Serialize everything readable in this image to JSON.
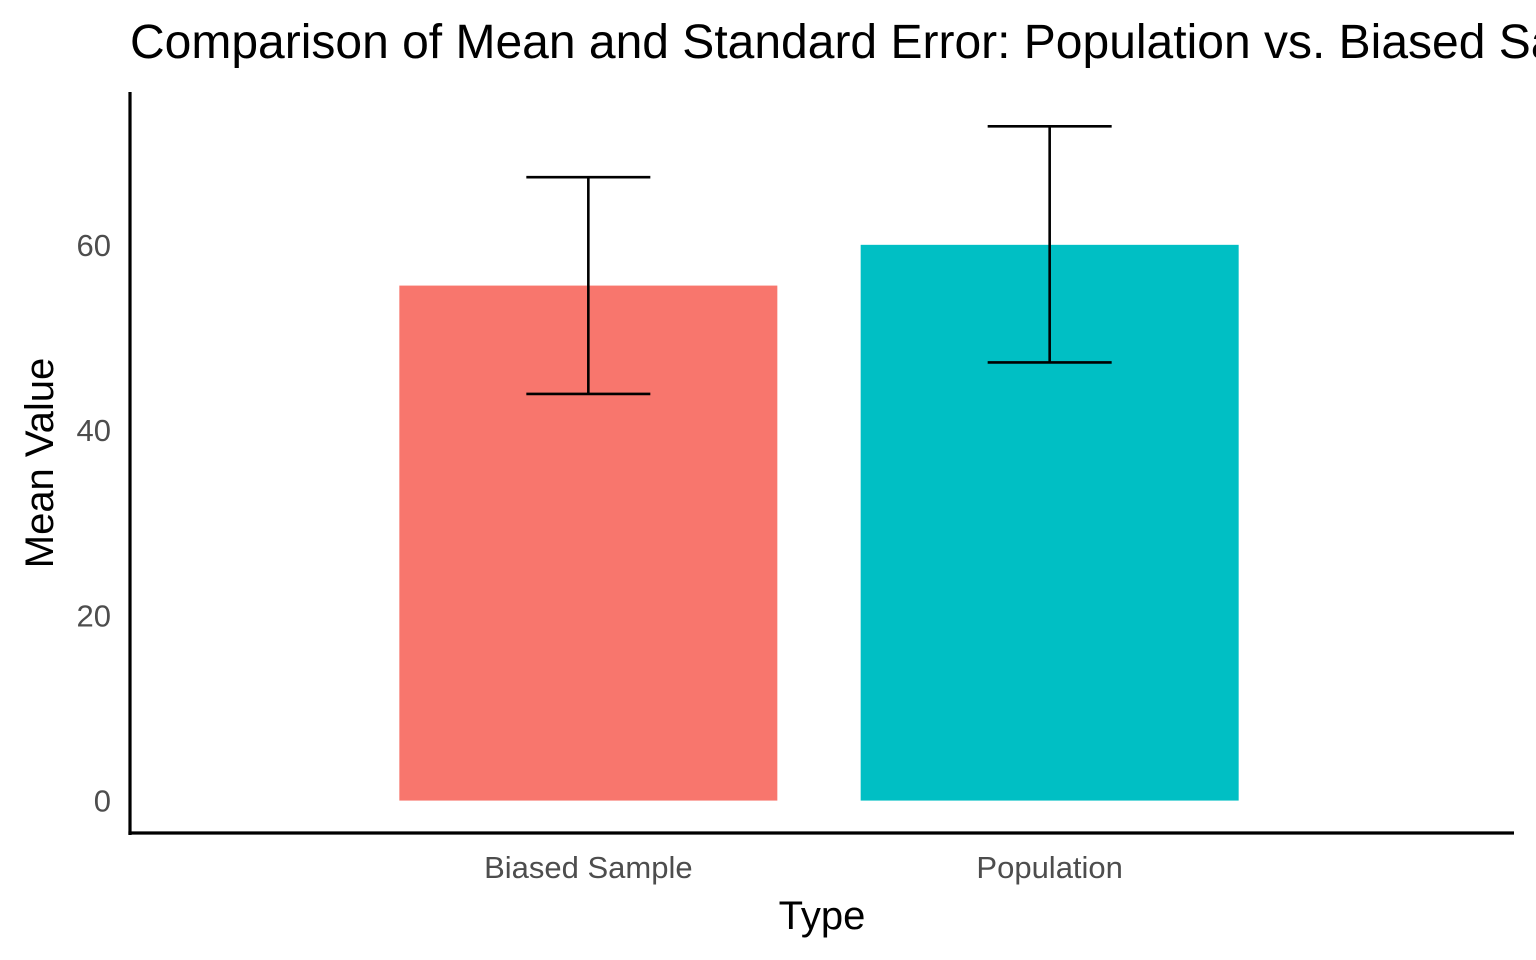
{
  "chart_data": {
    "type": "bar",
    "title": "Comparison of Mean and Standard Error: Population vs. Biased Sample",
    "xlabel": "Type",
    "ylabel": "Mean Value",
    "categories": [
      "Biased Sample",
      "Population"
    ],
    "values": [
      55.6,
      60.0
    ],
    "error_low": [
      43.9,
      47.3
    ],
    "error_high": [
      67.3,
      72.8
    ],
    "colors": [
      "#F8766D",
      "#00BFC4"
    ],
    "yticks": [
      0,
      20,
      40,
      60
    ],
    "ylim": [
      -3.5,
      76.5
    ],
    "grid": false,
    "legend": "none"
  }
}
